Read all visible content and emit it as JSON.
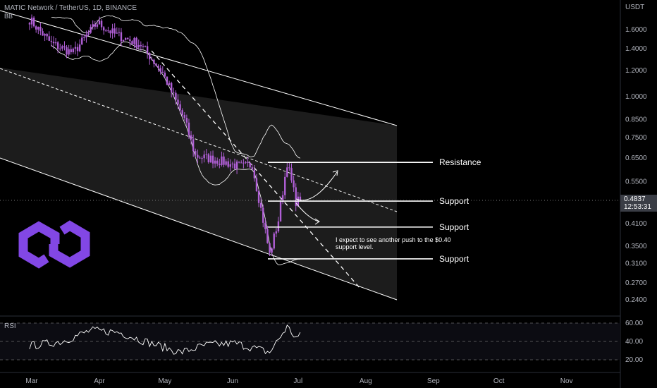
{
  "header": {
    "title": "MATIC Network / TetherUS, 1D, BINANCE",
    "sub": "BB"
  },
  "current": {
    "price": "0.4837",
    "countdown": "12:53:31"
  },
  "rsi_label": "RSI",
  "colors": {
    "candle": "#b05fd6",
    "lines": "#ffffff",
    "channel_fill": "#1c1c1c",
    "logo": "#8247e5"
  },
  "chart_data": {
    "type": "candlestick",
    "currency": "USDT",
    "log_scale": true,
    "y_ticks": [
      "1.6000",
      "1.4000",
      "1.2000",
      "1.0000",
      "0.8500",
      "0.7500",
      "0.6500",
      "0.5500",
      "0.4837",
      "0.4100",
      "0.3500",
      "0.3100",
      "0.2700",
      "0.2400"
    ],
    "y_tick_values": [
      1.6,
      1.4,
      1.2,
      1.0,
      0.85,
      0.75,
      0.65,
      0.55,
      0.4837,
      0.41,
      0.35,
      0.31,
      0.27,
      0.24
    ],
    "x_ticks": [
      "Mar",
      "Apr",
      "May",
      "Jun",
      "Jul",
      "Aug",
      "Sep",
      "Oct",
      "Nov"
    ],
    "price_anchors": [
      {
        "date": "Feb 28",
        "price": 1.72
      },
      {
        "date": "Mar 10",
        "price": 1.45
      },
      {
        "date": "Mar 20",
        "price": 1.36
      },
      {
        "date": "Mar 31",
        "price": 1.68
      },
      {
        "date": "Apr 8",
        "price": 1.55
      },
      {
        "date": "Apr 20",
        "price": 1.44
      },
      {
        "date": "Apr 30",
        "price": 1.18
      },
      {
        "date": "May 10",
        "price": 0.85
      },
      {
        "date": "May 15",
        "price": 0.66
      },
      {
        "date": "May 25",
        "price": 0.64
      },
      {
        "date": "Jun 5",
        "price": 0.61
      },
      {
        "date": "Jun 10",
        "price": 0.62
      },
      {
        "date": "Jun 15",
        "price": 0.42
      },
      {
        "date": "Jun 18",
        "price": 0.33
      },
      {
        "date": "Jun 22",
        "price": 0.42
      },
      {
        "date": "Jun 26",
        "price": 0.63
      },
      {
        "date": "Jun 30",
        "price": 0.48
      },
      {
        "date": "Jul 2",
        "price": 0.4837
      }
    ],
    "levels": [
      {
        "label": "Resistance",
        "price": 0.63
      },
      {
        "label": "Support",
        "price": 0.48
      },
      {
        "label": "Support",
        "price": 0.4
      },
      {
        "label": "Support",
        "price": 0.32
      }
    ],
    "annotation": [
      "I expect to see another push to the $0.40",
      "support level."
    ],
    "rsi": {
      "y_ticks": [
        "60.00",
        "40.00",
        "20.00"
      ],
      "anchors": [
        {
          "date": "Feb 28",
          "value": 35
        },
        {
          "date": "Mar 15",
          "value": 40
        },
        {
          "date": "Mar 28",
          "value": 52
        },
        {
          "date": "Apr 10",
          "value": 50
        },
        {
          "date": "Apr 22",
          "value": 40
        },
        {
          "date": "May 8",
          "value": 28
        },
        {
          "date": "May 20",
          "value": 36
        },
        {
          "date": "Jun 2",
          "value": 38
        },
        {
          "date": "Jun 12",
          "value": 32
        },
        {
          "date": "Jun 18",
          "value": 28
        },
        {
          "date": "Jun 26",
          "value": 56
        },
        {
          "date": "Jun 30",
          "value": 44
        },
        {
          "date": "Jul 2",
          "value": 46
        }
      ]
    }
  }
}
